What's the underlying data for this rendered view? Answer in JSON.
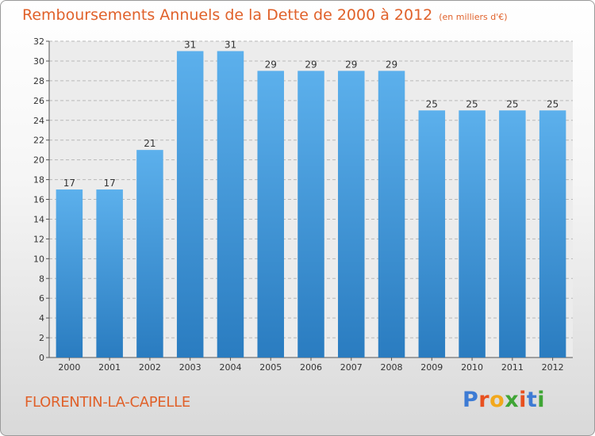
{
  "chart_data": {
    "type": "bar",
    "title": "Remboursements Annuels de la Dette de 2000 à 2012",
    "subtitle": "(en milliers d'€)",
    "categories": [
      "2000",
      "2001",
      "2002",
      "2003",
      "2004",
      "2005",
      "2006",
      "2007",
      "2008",
      "2009",
      "2010",
      "2011",
      "2012"
    ],
    "values": [
      17,
      17,
      21,
      31,
      31,
      29,
      29,
      29,
      29,
      25,
      25,
      25,
      25
    ],
    "ylim": [
      0,
      32
    ],
    "yticks": [
      0,
      2,
      4,
      6,
      8,
      10,
      12,
      14,
      16,
      18,
      20,
      22,
      24,
      26,
      28,
      30,
      32
    ],
    "grid": true,
    "bar_color": "#4a9fe0"
  },
  "commune": "FLORENTIN-LA-CAPELLE",
  "logo": {
    "letters": [
      "P",
      "r",
      "o",
      "x",
      "i",
      "t",
      "i"
    ],
    "colors": [
      "#3d7bd4",
      "#e8501f",
      "#f2a81c",
      "#3fa535",
      "#e8501f",
      "#3d7bd4",
      "#3fa535"
    ]
  },
  "colors": {
    "accent": "#e0612a"
  }
}
